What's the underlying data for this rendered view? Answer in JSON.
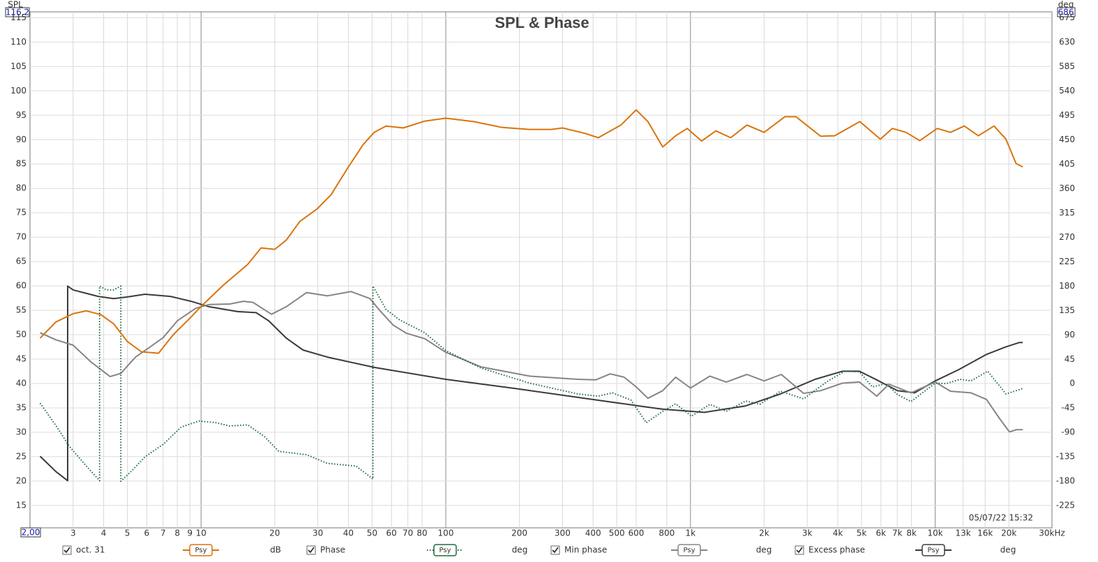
{
  "chart_data": {
    "type": "line",
    "title": "SPL & Phase",
    "y_label": "SPL",
    "y2_label": "deg",
    "range_labels": {
      "y_top": "116,2",
      "y2_top": "686",
      "x_left": "2,00"
    },
    "timestamp": "05/07/22 15:32",
    "log_x": true,
    "grid": true,
    "xlim": [
      2,
      30000
    ],
    "ylim": [
      10.4,
      116.2
    ],
    "y2lim": [
      -266,
      686
    ],
    "xticks": [
      3,
      4,
      5,
      6,
      7,
      8,
      9,
      10,
      20,
      30,
      40,
      50,
      60,
      70,
      80,
      100,
      200,
      300,
      400,
      500,
      600,
      800,
      {
        "value": 1000,
        "label": "1k"
      },
      {
        "value": 2000,
        "label": "2k"
      },
      {
        "value": 3000,
        "label": "3k"
      },
      {
        "value": 4000,
        "label": "4k"
      },
      {
        "value": 5000,
        "label": "5k"
      },
      {
        "value": 6000,
        "label": "6k"
      },
      {
        "value": 7000,
        "label": "7k"
      },
      {
        "value": 8000,
        "label": "8k"
      },
      {
        "value": 10000,
        "label": "10k"
      },
      {
        "value": 13000,
        "label": "13k",
        "color": "#9a9a9a"
      },
      {
        "value": 16000,
        "label": "16k",
        "color": "#9a9a9a"
      },
      {
        "value": 20000,
        "label": "20k"
      },
      {
        "value": 30000,
        "label": "30kHz"
      }
    ],
    "yticks": [
      15,
      20,
      25,
      30,
      35,
      40,
      45,
      50,
      55,
      60,
      65,
      70,
      75,
      80,
      85,
      90,
      95,
      100,
      105,
      110,
      115
    ],
    "y2ticks": [
      -225,
      -180,
      -135,
      -90,
      -45,
      0,
      45,
      90,
      135,
      180,
      225,
      270,
      315,
      360,
      405,
      450,
      495,
      540,
      585,
      630,
      675
    ],
    "series": [
      {
        "name": "oct. 31",
        "unit": "dB",
        "smoothing": "Psy",
        "color": "#d9730d",
        "style": "solid",
        "x": [
          2.2,
          2.55,
          3,
          3.4,
          3.9,
          4.4,
          5,
          5.7,
          6.7,
          7.7,
          9.1,
          10,
          12.3,
          15.5,
          17.6,
          20,
          22.3,
          25.3,
          29.8,
          34,
          40,
          46,
          51,
          57,
          67,
          82,
          100,
          130,
          170,
          220,
          270,
          300,
          370,
          420,
          520,
          600,
          670,
          770,
          870,
          970,
          1110,
          1270,
          1460,
          1700,
          2000,
          2430,
          2700,
          3400,
          3880,
          4920,
          5970,
          6680,
          7600,
          8650,
          10200,
          11550,
          13150,
          15000,
          17400,
          19450,
          21400,
          22800
        ],
        "values": [
          49.3,
          52.6,
          54.3,
          54.9,
          54.1,
          52.2,
          48.6,
          46.5,
          46.2,
          50,
          53.6,
          55.8,
          60.1,
          64.4,
          67.8,
          67.5,
          69.4,
          73.2,
          75.8,
          78.7,
          84.4,
          89,
          91.5,
          92.8,
          92.4,
          93.8,
          94.4,
          93.7,
          92.5,
          92.1,
          92.1,
          92.4,
          91.3,
          90.4,
          93,
          96.1,
          93.7,
          88.5,
          90.8,
          92.3,
          89.7,
          91.8,
          90.4,
          93,
          91.5,
          94.7,
          94.7,
          90.7,
          90.8,
          93.7,
          90.1,
          92.3,
          91.5,
          89.8,
          92.3,
          91.5,
          92.8,
          90.8,
          92.8,
          90.1,
          85.1,
          84.4
        ]
      },
      {
        "name": "Phase",
        "unit": "deg",
        "smoothing": "Psy",
        "color": "#1b6b3a",
        "style": "dotted",
        "axis": "y2",
        "x": [
          2.2,
          2.55,
          2.9,
          3.4,
          3.85,
          3.85,
          4.1,
          4.4,
          4.7,
          4.7,
          5.2,
          5.9,
          7,
          8.3,
          9.8,
          11.5,
          13.1,
          15.5,
          18.2,
          20.8,
          27,
          32.8,
          43,
          50.4,
          50.4,
          57,
          64.6,
          82,
          100,
          139,
          220,
          347,
          420,
          480,
          570,
          660,
          770,
          870,
          1010,
          1200,
          1400,
          1680,
          1920,
          2330,
          2900,
          3620,
          4270,
          4900,
          5540,
          6300,
          7010,
          7960,
          10000,
          11100,
          12650,
          14000,
          16400,
          19450,
          22800
        ],
        "values": [
          -36,
          -77,
          -116,
          -152,
          -179,
          180,
          173,
          173,
          180,
          -180,
          -161,
          -135,
          -112,
          -80,
          -69,
          -72,
          -78,
          -76,
          -98,
          -125,
          -131,
          -147,
          -152,
          -176,
          180,
          137,
          118,
          94,
          61,
          29,
          1,
          -19,
          -23,
          -17,
          -30,
          -72,
          -51,
          -37,
          -60,
          -38,
          -51,
          -32,
          -38,
          -14,
          -28,
          4,
          23,
          22,
          -6,
          0,
          -20,
          -33,
          1,
          0,
          8,
          5,
          23,
          -19,
          -9
        ]
      },
      {
        "name": "Min phase",
        "unit": "deg",
        "smoothing": "Psy",
        "color": "#858585",
        "style": "solid",
        "axis": "y2",
        "x": [
          2.2,
          2.55,
          3,
          3.53,
          4.25,
          4.7,
          5.4,
          6.2,
          7,
          8,
          9.5,
          10.8,
          13.1,
          14.9,
          16.3,
          19.4,
          22.3,
          27,
          32.8,
          41,
          49,
          54,
          61,
          69,
          82,
          100,
          139,
          220,
          347,
          410,
          470,
          535,
          600,
          670,
          770,
          870,
          1000,
          1200,
          1400,
          1700,
          2000,
          2350,
          2900,
          3400,
          4180,
          4900,
          5770,
          6470,
          7960,
          10000,
          11550,
          14000,
          16200,
          18300,
          20100,
          21400,
          22800
        ],
        "values": [
          94,
          81,
          71,
          41,
          13,
          19,
          49,
          68,
          85,
          116,
          139,
          146,
          147,
          152,
          150,
          128,
          142,
          168,
          162,
          170,
          157,
          134,
          108,
          93,
          83,
          58,
          31,
          14,
          8,
          7,
          18,
          12,
          -6,
          -27,
          -13,
          12,
          -8,
          14,
          3,
          17,
          5,
          17,
          -18,
          -13,
          1,
          3,
          -23,
          -1,
          -17,
          3,
          -14,
          -17,
          -29,
          -64,
          -89,
          -85,
          -85
        ]
      },
      {
        "name": "Excess phase",
        "unit": "deg",
        "smoothing": "Psy",
        "color": "#3a3a3a",
        "style": "solid",
        "axis": "y2",
        "x": [
          2.2,
          2.55,
          2.85,
          2.85,
          3,
          3.8,
          4.4,
          5,
          5.9,
          7.5,
          9.1,
          10.8,
          14.1,
          16.8,
          18.9,
          22.3,
          26.1,
          32.8,
          51,
          100,
          193,
          396,
          765,
          1140,
          1680,
          2330,
          3230,
          4180,
          4900,
          5770,
          7010,
          8240,
          10000,
          12500,
          16200,
          19450,
          22100,
          22800
        ],
        "values": [
          -134,
          -162,
          -179,
          180,
          173,
          161,
          157,
          160,
          165,
          161,
          152,
          142,
          133,
          131,
          116,
          84,
          62,
          49,
          30,
          8,
          -9,
          -29,
          -47,
          -53,
          -41,
          -19,
          8,
          23,
          23,
          7,
          -13,
          -17,
          5,
          26,
          54,
          68,
          76,
          76
        ]
      }
    ]
  }
}
